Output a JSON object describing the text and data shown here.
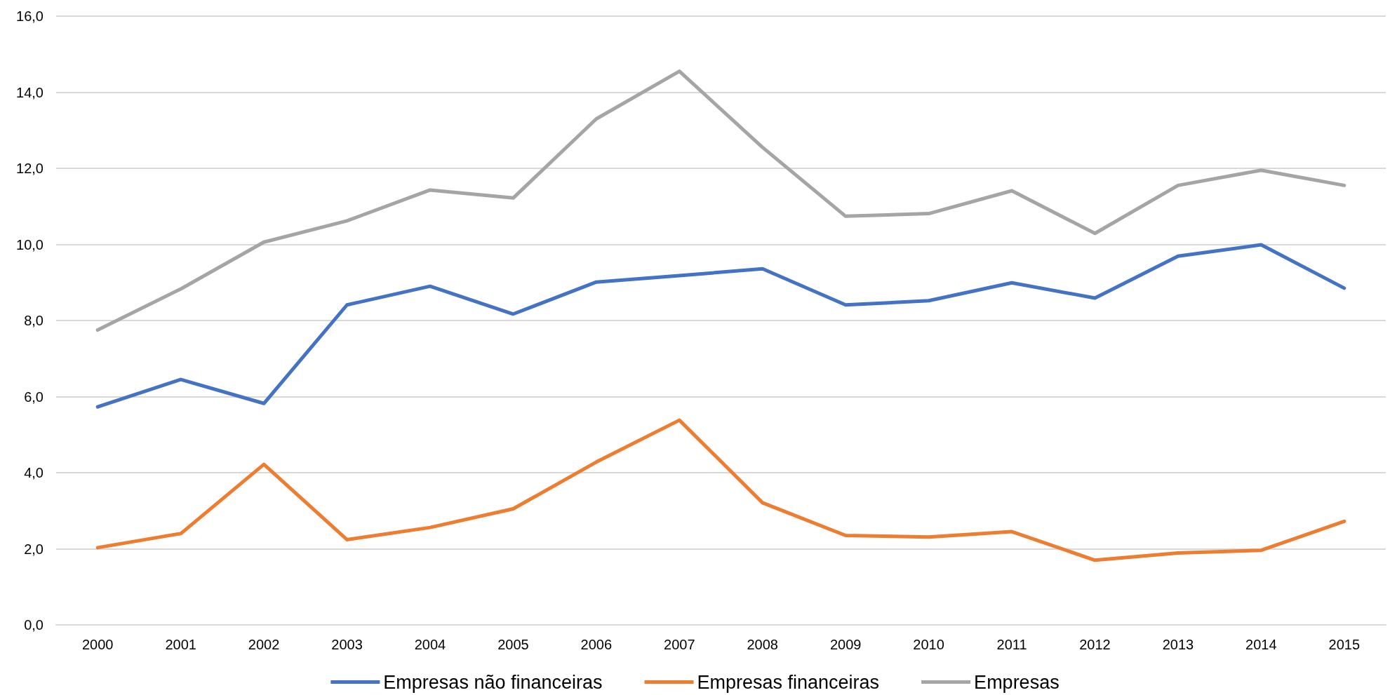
{
  "chart_data": {
    "type": "line",
    "categories": [
      "2000",
      "2001",
      "2002",
      "2003",
      "2004",
      "2005",
      "2006",
      "2007",
      "2008",
      "2009",
      "2010",
      "2011",
      "2012",
      "2013",
      "2014",
      "2015"
    ],
    "series": [
      {
        "name": "Empresas não financeiras",
        "color": "#4472c4",
        "values": [
          5.73,
          6.45,
          5.82,
          8.41,
          8.9,
          8.17,
          9.01,
          9.18,
          9.36,
          8.41,
          8.52,
          8.99,
          8.59,
          9.69,
          9.99,
          8.85
        ]
      },
      {
        "name": "Empresas financeiras",
        "color": "#ed7d31",
        "values": [
          2.03,
          2.4,
          4.22,
          2.24,
          2.56,
          3.05,
          4.28,
          5.38,
          3.21,
          2.35,
          2.31,
          2.45,
          1.7,
          1.89,
          1.96,
          2.72
        ]
      },
      {
        "name": "Empresas",
        "color": "#a5a5a5",
        "values": [
          7.75,
          8.83,
          10.06,
          10.62,
          11.43,
          11.22,
          13.3,
          14.55,
          12.55,
          10.74,
          10.81,
          11.41,
          10.29,
          11.55,
          11.95,
          11.55
        ]
      }
    ],
    "ylim": [
      0,
      16
    ],
    "yticks": [
      {
        "value": 0,
        "label": "0,0"
      },
      {
        "value": 2,
        "label": "2,0"
      },
      {
        "value": 4,
        "label": "4,0"
      },
      {
        "value": 6,
        "label": "6,0"
      },
      {
        "value": 8,
        "label": "8,0"
      },
      {
        "value": 10,
        "label": "10,0"
      },
      {
        "value": 12,
        "label": "12,0"
      },
      {
        "value": 14,
        "label": "14,0"
      },
      {
        "value": 16,
        "label": "16,0"
      }
    ],
    "grid": "y",
    "legend": "bottom",
    "marker": "none",
    "line_style": "solid"
  }
}
